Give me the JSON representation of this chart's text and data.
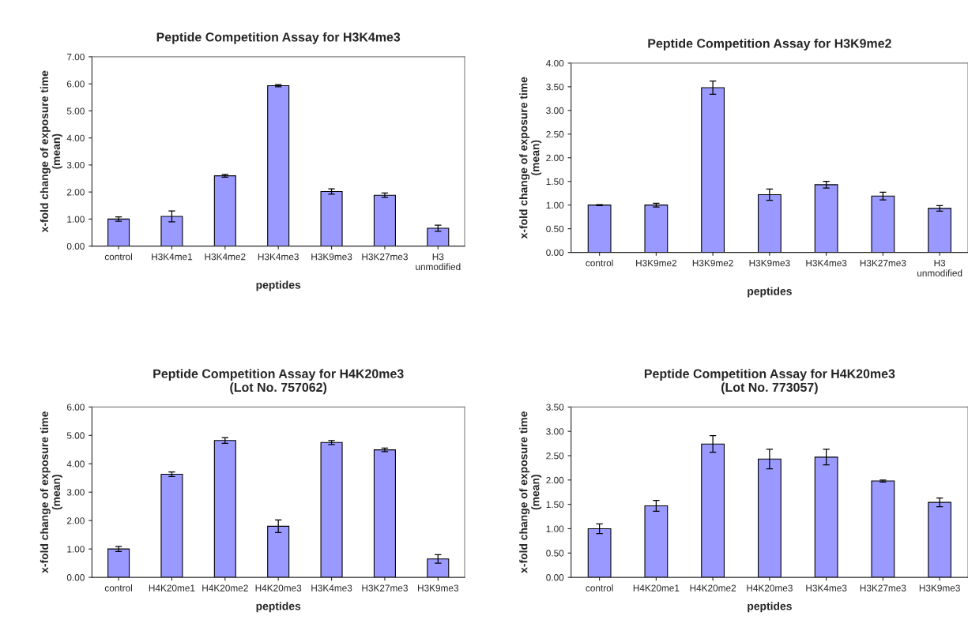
{
  "chart_data": [
    {
      "type": "bar",
      "title": "Peptide Competition Assay for H3K4me3",
      "xlabel": "peptides",
      "ylabel": "x-fold change of exposure time\n(mean)",
      "categories": [
        "control",
        "H3K4me1",
        "H3K4me2",
        "H3K4me3",
        "H3K9me3",
        "H3K27me3",
        "H3\nunmodified"
      ],
      "series": [
        {
          "color": "#9999ff",
          "values": [
            1.0,
            1.1,
            2.6,
            5.93,
            2.02,
            1.88,
            0.66
          ],
          "errors": [
            0.08,
            0.2,
            0.05,
            0.04,
            0.1,
            0.08,
            0.11
          ]
        }
      ],
      "ylim": [
        0,
        7
      ],
      "yticks": [
        {
          "value": 0,
          "label": "0.00"
        },
        {
          "value": 1,
          "label": "1.00"
        },
        {
          "value": 2,
          "label": "2.00"
        },
        {
          "value": 3,
          "label": "3.00"
        },
        {
          "value": 4,
          "label": "4.00"
        },
        {
          "value": 5,
          "label": "5.00"
        },
        {
          "value": 6,
          "label": "6.00"
        },
        {
          "value": 7,
          "label": "7.00"
        }
      ],
      "grid": false,
      "legend": false
    },
    {
      "type": "bar",
      "title": "Peptide Competition Assay for H3K9me2",
      "xlabel": "peptides",
      "ylabel": "x-fold change of exposure time\n(mean)",
      "categories": [
        "control",
        "H3K9me2",
        "H3K9me2",
        "H3K9me3",
        "H3K4me3",
        "H3K27me3",
        "H3\nunmodified"
      ],
      "series": [
        {
          "color": "#9999ff",
          "values": [
            1.0,
            1.0,
            3.48,
            1.22,
            1.43,
            1.19,
            0.93
          ],
          "errors": [
            0.01,
            0.04,
            0.14,
            0.12,
            0.07,
            0.08,
            0.06
          ]
        }
      ],
      "ylim": [
        0,
        4
      ],
      "yticks": [
        {
          "value": 0,
          "label": "0.00"
        },
        {
          "value": 0.5,
          "label": "0.50"
        },
        {
          "value": 1,
          "label": "1.00"
        },
        {
          "value": 1.5,
          "label": "1.50"
        },
        {
          "value": 2,
          "label": "2.00"
        },
        {
          "value": 2.5,
          "label": "2.50"
        },
        {
          "value": 3,
          "label": "3.00"
        },
        {
          "value": 3.5,
          "label": "3.50"
        },
        {
          "value": 4,
          "label": "4.00"
        }
      ],
      "grid": false,
      "legend": false
    },
    {
      "type": "bar",
      "title": "Peptide Competition Assay for H4K20me3\n(Lot No. 757062)",
      "xlabel": "peptides",
      "ylabel": "x-fold change of exposure time\n(mean)",
      "categories": [
        "control",
        "H4K20me1",
        "H4K20me2",
        "H4K20me3",
        "H3K4me3",
        "H3K27me3",
        "H3K9me3"
      ],
      "series": [
        {
          "color": "#9999ff",
          "values": [
            1.0,
            3.63,
            4.82,
            1.8,
            4.75,
            4.49,
            0.65
          ],
          "errors": [
            0.09,
            0.08,
            0.1,
            0.22,
            0.07,
            0.06,
            0.15
          ]
        }
      ],
      "ylim": [
        0,
        6
      ],
      "yticks": [
        {
          "value": 0,
          "label": "0.00"
        },
        {
          "value": 1,
          "label": "1.00"
        },
        {
          "value": 2,
          "label": "2.00"
        },
        {
          "value": 3,
          "label": "3.00"
        },
        {
          "value": 4,
          "label": "4.00"
        },
        {
          "value": 5,
          "label": "5.00"
        },
        {
          "value": 6,
          "label": "6.00"
        }
      ],
      "grid": false,
      "legend": false
    },
    {
      "type": "bar",
      "title": "Peptide Competition Assay for H4K20me3\n(Lot No. 773057)",
      "xlabel": "peptides",
      "ylabel": "x-fold change of exposure time\n(mean)",
      "categories": [
        "control",
        "H4K20me1",
        "H4K20me2",
        "H4K20me3",
        "H3K4me3",
        "H3K27me3",
        "H3K9me3"
      ],
      "series": [
        {
          "color": "#9999ff",
          "values": [
            1.0,
            1.47,
            2.74,
            2.43,
            2.47,
            1.98,
            1.54
          ],
          "errors": [
            0.1,
            0.11,
            0.17,
            0.2,
            0.16,
            0.02,
            0.09
          ]
        }
      ],
      "ylim": [
        0,
        3.5
      ],
      "yticks": [
        {
          "value": 0,
          "label": "0.00"
        },
        {
          "value": 0.5,
          "label": "0.50"
        },
        {
          "value": 1,
          "label": "1.00"
        },
        {
          "value": 1.5,
          "label": "1.50"
        },
        {
          "value": 2,
          "label": "2.00"
        },
        {
          "value": 2.5,
          "label": "2.50"
        },
        {
          "value": 3,
          "label": "3.00"
        },
        {
          "value": 3.5,
          "label": "3.50"
        }
      ],
      "grid": false,
      "legend": false
    }
  ]
}
